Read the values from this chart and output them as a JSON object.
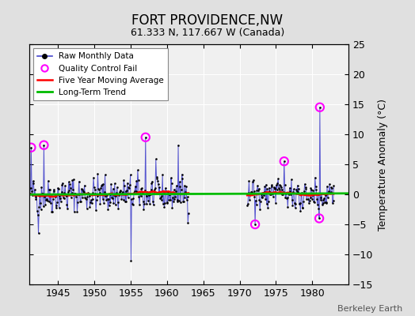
{
  "title": "FORT PROVIDENCE,NW",
  "subtitle": "61.333 N, 117.667 W (Canada)",
  "ylabel": "Temperature Anomaly (°C)",
  "attribution": "Berkeley Earth",
  "xlim": [
    1941,
    1985
  ],
  "ylim": [
    -15,
    25
  ],
  "yticks": [
    -15,
    -10,
    -5,
    0,
    5,
    10,
    15,
    20,
    25
  ],
  "xticks": [
    1945,
    1950,
    1955,
    1960,
    1965,
    1970,
    1975,
    1980
  ],
  "background_color": "#e0e0e0",
  "plot_bg_color": "#f0f0f0",
  "grid_color": "#ffffff",
  "raw_line_color": "#4444cc",
  "raw_dot_color": "#000000",
  "moving_avg_color": "#ff0000",
  "trend_color": "#00bb00",
  "qc_fail_color": "#ff00ff",
  "gap_start": 1963.0,
  "gap_end": 1971.0,
  "seed": 42
}
